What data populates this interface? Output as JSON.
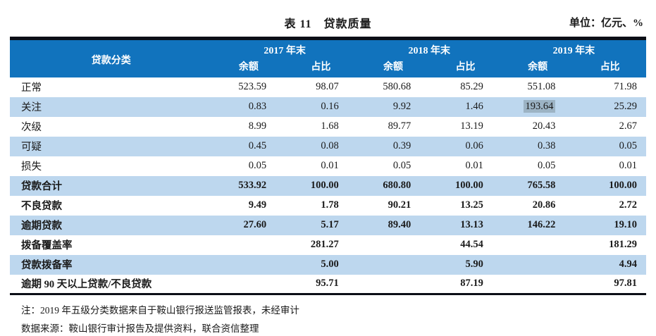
{
  "title": "表 11　贷款质量",
  "unit": "单位：亿元、%",
  "table": {
    "col_header": "贷款分类",
    "year_groups": [
      "2017 年末",
      "2018 年末",
      "2019 年末"
    ],
    "sub_headers": [
      "余额",
      "占比"
    ],
    "rows": [
      {
        "label": "正常",
        "values": [
          "523.59",
          "98.07",
          "580.68",
          "85.29",
          "551.08",
          "71.98"
        ]
      },
      {
        "label": "关注",
        "values": [
          "0.83",
          "0.16",
          "9.92",
          "1.46",
          "193.64",
          "25.29"
        ]
      },
      {
        "label": "次级",
        "values": [
          "8.99",
          "1.68",
          "89.77",
          "13.19",
          "20.43",
          "2.67"
        ]
      },
      {
        "label": "可疑",
        "values": [
          "0.45",
          "0.08",
          "0.39",
          "0.06",
          "0.38",
          "0.05"
        ]
      },
      {
        "label": "损失",
        "values": [
          "0.05",
          "0.01",
          "0.05",
          "0.01",
          "0.05",
          "0.01"
        ]
      },
      {
        "label": "贷款合计",
        "values": [
          "533.92",
          "100.00",
          "680.80",
          "100.00",
          "765.58",
          "100.00"
        ]
      },
      {
        "label": "不良贷款",
        "values": [
          "9.49",
          "1.78",
          "90.21",
          "13.25",
          "20.86",
          "2.72"
        ]
      },
      {
        "label": "逾期贷款",
        "values": [
          "27.60",
          "5.17",
          "89.40",
          "13.13",
          "146.22",
          "19.10"
        ]
      },
      {
        "label": "拨备覆盖率",
        "values": [
          "",
          "281.27",
          "",
          "44.54",
          "",
          "181.29"
        ]
      },
      {
        "label": "贷款拨备率",
        "values": [
          "",
          "5.00",
          "",
          "5.90",
          "",
          "4.94"
        ]
      },
      {
        "label": "逾期 90 天以上贷款/不良贷款",
        "values": [
          "",
          "95.71",
          "",
          "87.19",
          "",
          "97.81"
        ]
      }
    ],
    "highlighted_cell": {
      "row_label": "关注",
      "column": "2019 年末 余额",
      "value": "193.64"
    }
  },
  "footnotes": [
    "注：2019 年五级分类数据来自于鞍山银行报送监管报表，未经审计",
    "数据来源：鞍山银行审计报告及提供资料，联合资信整理"
  ],
  "colors": {
    "header_bg": "#1173bd",
    "alt_row_bg": "#bdd7ee",
    "highlight_bg": "#9cb3c4",
    "border_dark": "#0b0e16"
  }
}
